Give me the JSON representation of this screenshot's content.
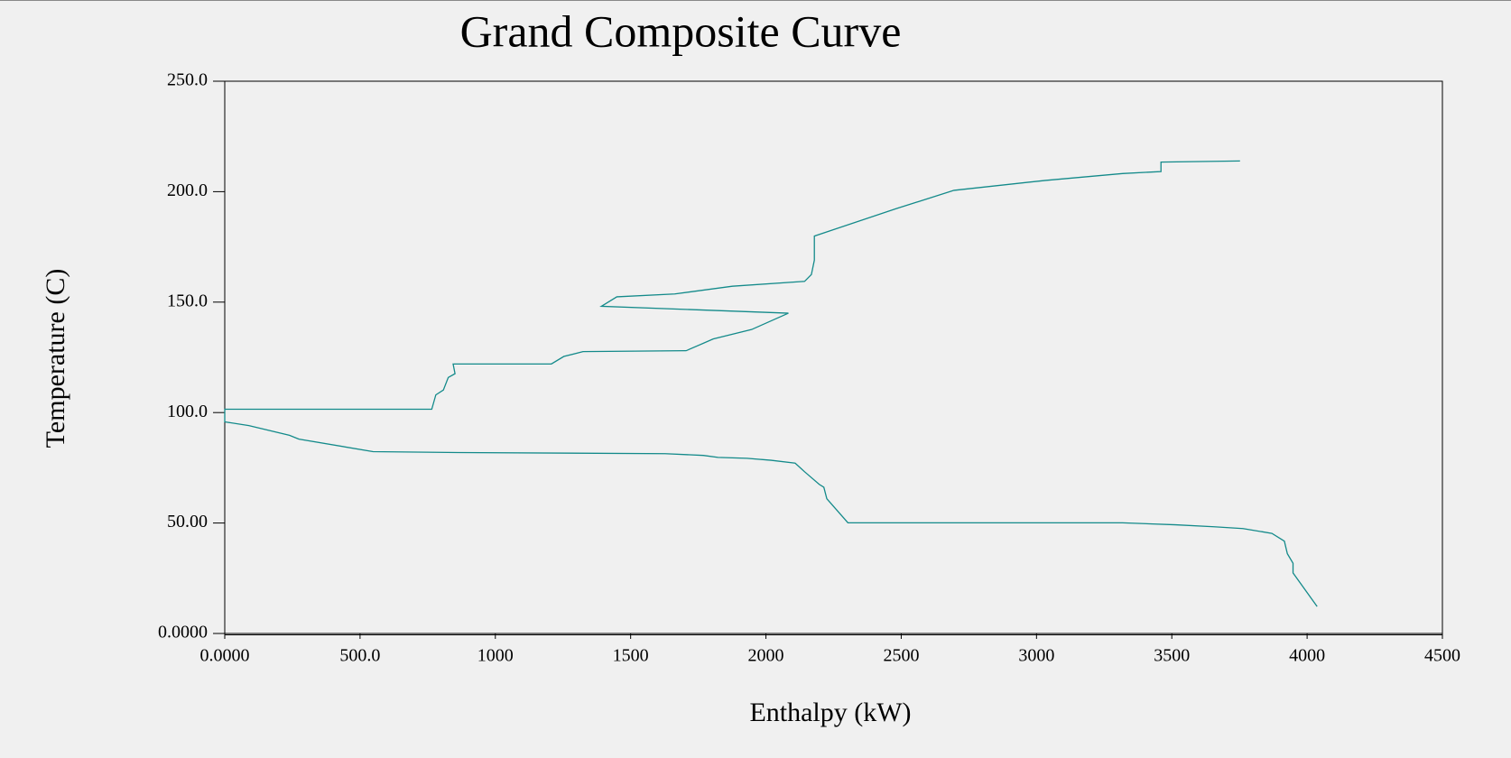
{
  "chart_data": {
    "type": "line",
    "title": "Grand Composite Curve",
    "x_label": "Enthalpy (kW)",
    "y_label": "Temperature (C)",
    "xlim": [
      0,
      4500
    ],
    "xticks": [
      {
        "value": 0,
        "label": "0.0000"
      },
      {
        "value": 500,
        "label": "500.0"
      },
      1000,
      1500,
      2000,
      2500,
      3000,
      3500,
      4000,
      4500
    ],
    "ylim": [
      0,
      250
    ],
    "yticks": [
      {
        "value": 0,
        "label": "0.0000"
      },
      {
        "value": 50,
        "label": "50.00"
      },
      {
        "value": 100,
        "label": "100.0"
      },
      {
        "value": 150,
        "label": "150.0"
      },
      {
        "value": 200,
        "label": "200.0"
      },
      {
        "value": 250,
        "label": "250.0"
      }
    ],
    "color": "#138a8a",
    "x": [
      3752,
      3460,
      3460,
      3318,
      3033,
      2695,
      2481,
      2179,
      2179,
      2168,
      2143,
      1876,
      1663,
      1449,
      1392,
      2083,
      1947,
      1805,
      1705,
      1324,
      1253,
      1207,
      844,
      851,
      826,
      808,
      780,
      765,
      0,
      0,
      89,
      239,
      274,
      548,
      862,
      1627,
      1769,
      1823,
      1930,
      2019,
      2108,
      2143,
      2197,
      2214,
      2225,
      2303,
      3318,
      3514,
      3656,
      3763,
      3870,
      3916,
      3927,
      3948,
      3948,
      4037
    ],
    "values": [
      213.9,
      213.4,
      209.1,
      208.2,
      205.1,
      200.6,
      192.3,
      179.9,
      169.0,
      162.5,
      159.4,
      157.2,
      153.7,
      152.4,
      148.1,
      145.0,
      137.6,
      133.3,
      128.0,
      127.6,
      125.4,
      122.0,
      122.0,
      117.6,
      115.9,
      110.2,
      108.0,
      101.5,
      101.5,
      95.8,
      94.1,
      89.7,
      88.0,
      82.3,
      81.9,
      81.4,
      80.6,
      79.7,
      79.3,
      78.4,
      77.1,
      73.2,
      67.5,
      66.2,
      61.0,
      50.1,
      50.1,
      49.2,
      48.3,
      47.5,
      45.3,
      41.8,
      36.1,
      31.8,
      27.4,
      12.2
    ]
  }
}
